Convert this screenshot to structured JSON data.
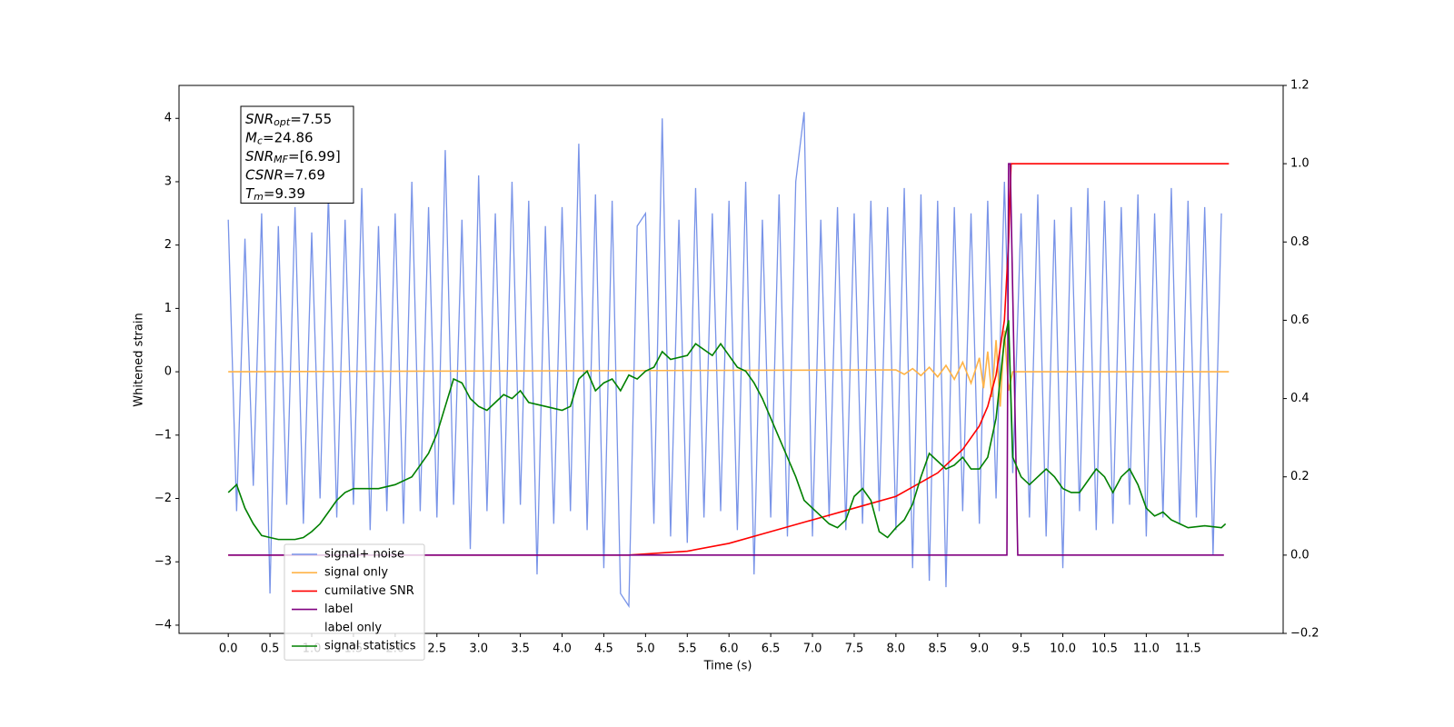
{
  "chart_data": {
    "type": "line",
    "xlabel": "Time (s)",
    "ylabel": "Whitened strain",
    "xlim": [
      -0.59,
      12.64
    ],
    "ylim": [
      -4.13,
      4.52
    ],
    "y2lim": [
      -0.2,
      1.2
    ],
    "xticks": [
      {
        "value": 0,
        "label": "0.0"
      },
      0.5,
      {
        "value": 1,
        "label": "1.0"
      },
      1.5,
      {
        "value": 2,
        "label": "2.0"
      },
      2.5,
      {
        "value": 3,
        "label": "3.0"
      },
      3.5,
      {
        "value": 4,
        "label": "4.0"
      },
      4.5,
      {
        "value": 5,
        "label": "5.0"
      },
      5.5,
      {
        "value": 6,
        "label": "6.0"
      },
      6.5,
      {
        "value": 7,
        "label": "7.0"
      },
      7.5,
      {
        "value": 8,
        "label": "8.0"
      },
      8.5,
      {
        "value": 9,
        "label": "9.0"
      },
      9.5,
      {
        "value": 10,
        "label": "10.0"
      },
      10.5,
      {
        "value": 11,
        "label": "11.0"
      },
      11.5
    ],
    "yticks": [
      {
        "value": -4,
        "label": "−4"
      },
      {
        "value": -3,
        "label": "−3"
      },
      {
        "value": -2,
        "label": "−2"
      },
      {
        "value": -1,
        "label": "−1"
      },
      0,
      1,
      2,
      3,
      4
    ],
    "y2ticks": [
      {
        "value": -0.2,
        "label": "−0.2"
      },
      {
        "value": 0,
        "label": "0.0"
      },
      0.2,
      0.4,
      0.6,
      0.8,
      {
        "value": 1,
        "label": "1.0"
      },
      1.2
    ],
    "legend": "lower left",
    "annotation": [
      {
        "base": "SNR",
        "sub": "opt",
        "rest": "=7.55"
      },
      {
        "base": "M",
        "sub": "c",
        "rest": "=24.86"
      },
      {
        "base": "SNR",
        "sub": "MF",
        "rest": "=[6.99]"
      },
      {
        "base": "CSNR",
        "sub": null,
        "rest": "=7.69"
      },
      {
        "base": "T",
        "sub": "m",
        "rest": "=9.39"
      }
    ],
    "series": [
      {
        "name": "signal+ noise",
        "color": "#7893e8",
        "axis": "y",
        "x": [
          0.0,
          0.1,
          0.2,
          0.3,
          0.4,
          0.5,
          0.6,
          0.7,
          0.8,
          0.9,
          1.0,
          1.1,
          1.2,
          1.3,
          1.4,
          1.5,
          1.6,
          1.7,
          1.8,
          1.9,
          2.0,
          2.1,
          2.2,
          2.3,
          2.4,
          2.5,
          2.6,
          2.7,
          2.8,
          2.9,
          3.0,
          3.1,
          3.2,
          3.3,
          3.4,
          3.5,
          3.6,
          3.7,
          3.8,
          3.9,
          4.0,
          4.1,
          4.2,
          4.3,
          4.4,
          4.5,
          4.6,
          4.7,
          4.8,
          4.9,
          5.0,
          5.1,
          5.2,
          5.3,
          5.4,
          5.5,
          5.6,
          5.7,
          5.8,
          5.9,
          6.0,
          6.1,
          6.2,
          6.3,
          6.4,
          6.5,
          6.6,
          6.7,
          6.8,
          6.9,
          7.0,
          7.1,
          7.2,
          7.3,
          7.4,
          7.5,
          7.6,
          7.7,
          7.8,
          7.9,
          8.0,
          8.1,
          8.2,
          8.3,
          8.4,
          8.5,
          8.6,
          8.7,
          8.8,
          8.9,
          9.0,
          9.1,
          9.2,
          9.3,
          9.4,
          9.5,
          9.6,
          9.7,
          9.8,
          9.9,
          10.0,
          10.1,
          10.2,
          10.3,
          10.4,
          10.5,
          10.6,
          10.7,
          10.8,
          10.9,
          11.0,
          11.1,
          11.2,
          11.3,
          11.4,
          11.5,
          11.6,
          11.7,
          11.8,
          11.9
        ],
        "values": [
          2.4,
          -2.2,
          2.1,
          -1.8,
          2.5,
          -3.5,
          2.3,
          -2.1,
          2.6,
          -2.4,
          2.2,
          -2.0,
          2.8,
          -2.3,
          2.4,
          -2.1,
          2.9,
          -2.5,
          2.3,
          -2.2,
          2.5,
          -2.4,
          3.0,
          -2.2,
          2.6,
          -2.3,
          3.5,
          -2.1,
          2.4,
          -2.8,
          3.1,
          -2.2,
          2.5,
          -2.4,
          3.0,
          -2.1,
          2.7,
          -3.2,
          2.3,
          -2.4,
          2.6,
          -2.2,
          3.6,
          -2.5,
          2.8,
          -3.1,
          2.7,
          -3.5,
          -3.7,
          2.3,
          2.5,
          -2.4,
          4.0,
          -2.6,
          2.4,
          -2.7,
          2.9,
          -2.3,
          2.5,
          -2.2,
          2.7,
          -2.5,
          3.0,
          -3.2,
          2.4,
          -2.3,
          2.8,
          -2.6,
          3.0,
          4.1,
          -2.6,
          2.4,
          -2.3,
          2.6,
          -2.5,
          2.5,
          -2.4,
          2.7,
          -2.2,
          2.6,
          -2.5,
          2.9,
          -3.1,
          2.8,
          -3.3,
          2.7,
          -3.4,
          2.6,
          -2.2,
          2.5,
          -2.4,
          2.7,
          -2.0,
          3.0,
          -1.6,
          2.5,
          -2.3,
          2.8,
          -2.6,
          2.4,
          -3.1,
          2.6,
          -2.2,
          2.9,
          -2.5,
          2.7,
          -2.4,
          2.6,
          -2.1,
          2.8,
          -2.6,
          2.5,
          -2.3,
          2.9,
          -2.4,
          2.7,
          -2.3,
          2.6,
          -2.9,
          2.5
        ]
      },
      {
        "name": "signal only",
        "color": "#ffb347",
        "axis": "y",
        "x": [
          0,
          8.0,
          8.1,
          8.2,
          8.3,
          8.4,
          8.5,
          8.6,
          8.7,
          8.8,
          8.9,
          9.0,
          9.05,
          9.1,
          9.15,
          9.2,
          9.25,
          9.3,
          9.35,
          9.4,
          11.99
        ],
        "values": [
          0,
          0.03,
          -0.04,
          0.05,
          -0.06,
          0.07,
          -0.08,
          0.1,
          -0.12,
          0.15,
          -0.18,
          0.22,
          -0.26,
          0.32,
          -0.4,
          0.5,
          -0.55,
          0.65,
          -0.3,
          0,
          0
        ]
      },
      {
        "name": "cumilative SNR",
        "color": "#ff0000",
        "axis": "y2",
        "x": [
          0,
          4.5,
          4.8,
          5.5,
          6.0,
          6.5,
          7.0,
          7.5,
          8.0,
          8.5,
          8.8,
          9.0,
          9.1,
          9.2,
          9.3,
          9.35,
          9.38,
          11.99
        ],
        "values": [
          0,
          0,
          0,
          0.01,
          0.03,
          0.06,
          0.09,
          0.12,
          0.15,
          0.21,
          0.27,
          0.33,
          0.38,
          0.46,
          0.6,
          0.8,
          1.0,
          1.0
        ]
      },
      {
        "name": "label",
        "color": "#800080",
        "axis": "y2",
        "x": [
          0,
          9.33,
          9.35,
          9.37,
          9.46,
          11.93
        ],
        "values": [
          0,
          0,
          1,
          1,
          0,
          0
        ]
      },
      {
        "name": "label only",
        "color": "#ffffff",
        "axis": "y2",
        "x": [],
        "values": []
      },
      {
        "name": "signal statistics",
        "color": "#008000",
        "axis": "y2",
        "x": [
          0.0,
          0.1,
          0.2,
          0.3,
          0.4,
          0.5,
          0.6,
          0.8,
          0.9,
          1.0,
          1.1,
          1.2,
          1.3,
          1.4,
          1.5,
          1.6,
          1.8,
          2.0,
          2.2,
          2.3,
          2.4,
          2.5,
          2.6,
          2.7,
          2.8,
          2.9,
          3.0,
          3.1,
          3.2,
          3.3,
          3.4,
          3.5,
          3.6,
          3.8,
          4.0,
          4.1,
          4.2,
          4.3,
          4.4,
          4.5,
          4.6,
          4.7,
          4.8,
          4.9,
          5.0,
          5.1,
          5.2,
          5.3,
          5.5,
          5.6,
          5.8,
          5.9,
          6.0,
          6.1,
          6.2,
          6.3,
          6.4,
          6.5,
          6.6,
          6.7,
          6.8,
          6.9,
          7.0,
          7.1,
          7.2,
          7.3,
          7.4,
          7.5,
          7.6,
          7.7,
          7.8,
          7.9,
          8.0,
          8.1,
          8.2,
          8.3,
          8.4,
          8.5,
          8.6,
          8.7,
          8.8,
          8.9,
          9.0,
          9.1,
          9.2,
          9.3,
          9.35,
          9.4,
          9.5,
          9.6,
          9.7,
          9.8,
          9.9,
          10.0,
          10.1,
          10.2,
          10.3,
          10.4,
          10.5,
          10.6,
          10.7,
          10.8,
          10.9,
          11.0,
          11.1,
          11.2,
          11.3,
          11.4,
          11.5,
          11.7,
          11.9,
          11.95
        ],
        "values": [
          0.16,
          0.18,
          0.12,
          0.08,
          0.05,
          0.045,
          0.04,
          0.04,
          0.045,
          0.06,
          0.08,
          0.11,
          0.14,
          0.16,
          0.17,
          0.17,
          0.17,
          0.18,
          0.2,
          0.23,
          0.26,
          0.31,
          0.38,
          0.45,
          0.44,
          0.4,
          0.38,
          0.37,
          0.39,
          0.41,
          0.4,
          0.42,
          0.39,
          0.38,
          0.37,
          0.38,
          0.45,
          0.47,
          0.42,
          0.44,
          0.45,
          0.42,
          0.46,
          0.45,
          0.47,
          0.48,
          0.52,
          0.5,
          0.51,
          0.54,
          0.51,
          0.54,
          0.51,
          0.48,
          0.47,
          0.44,
          0.4,
          0.35,
          0.3,
          0.25,
          0.2,
          0.14,
          0.12,
          0.1,
          0.08,
          0.07,
          0.09,
          0.15,
          0.17,
          0.14,
          0.06,
          0.045,
          0.07,
          0.09,
          0.13,
          0.2,
          0.26,
          0.24,
          0.22,
          0.23,
          0.25,
          0.22,
          0.22,
          0.25,
          0.35,
          0.55,
          0.6,
          0.25,
          0.2,
          0.18,
          0.2,
          0.22,
          0.2,
          0.17,
          0.16,
          0.16,
          0.19,
          0.22,
          0.2,
          0.16,
          0.2,
          0.22,
          0.18,
          0.12,
          0.1,
          0.11,
          0.09,
          0.08,
          0.07,
          0.075,
          0.07,
          0.08
        ]
      }
    ]
  }
}
